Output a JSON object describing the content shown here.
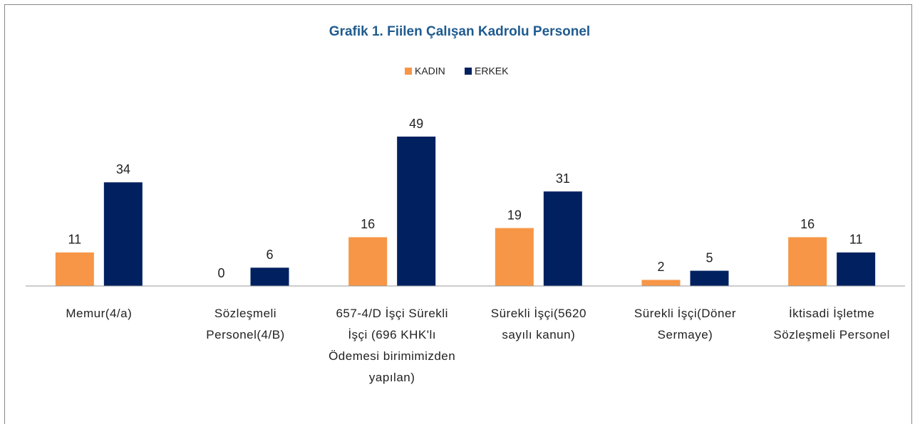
{
  "chart_data": {
    "type": "bar",
    "title": "Grafik 1. Fiilen Çalışan Kadrolu Personel",
    "categories": [
      "Memur(4/a)",
      "Sözleşmeli Personel(4/B)",
      "657-4/D İşçi Sürekli İşçi (696 KHK'lı Ödemesi birimimizden yapılan)",
      "Sürekli İşçi(5620 sayılı kanun)",
      "Sürekli İşçi(Döner Sermaye)",
      "İktisadi İşletme Sözleşmeli Personel"
    ],
    "series": [
      {
        "name": "KADIN",
        "color": "#f79646",
        "values": [
          11,
          0,
          16,
          19,
          2,
          16
        ]
      },
      {
        "name": "ERKEK",
        "color": "#002060",
        "values": [
          34,
          6,
          49,
          31,
          5,
          11
        ]
      }
    ],
    "legend": "top"
  }
}
